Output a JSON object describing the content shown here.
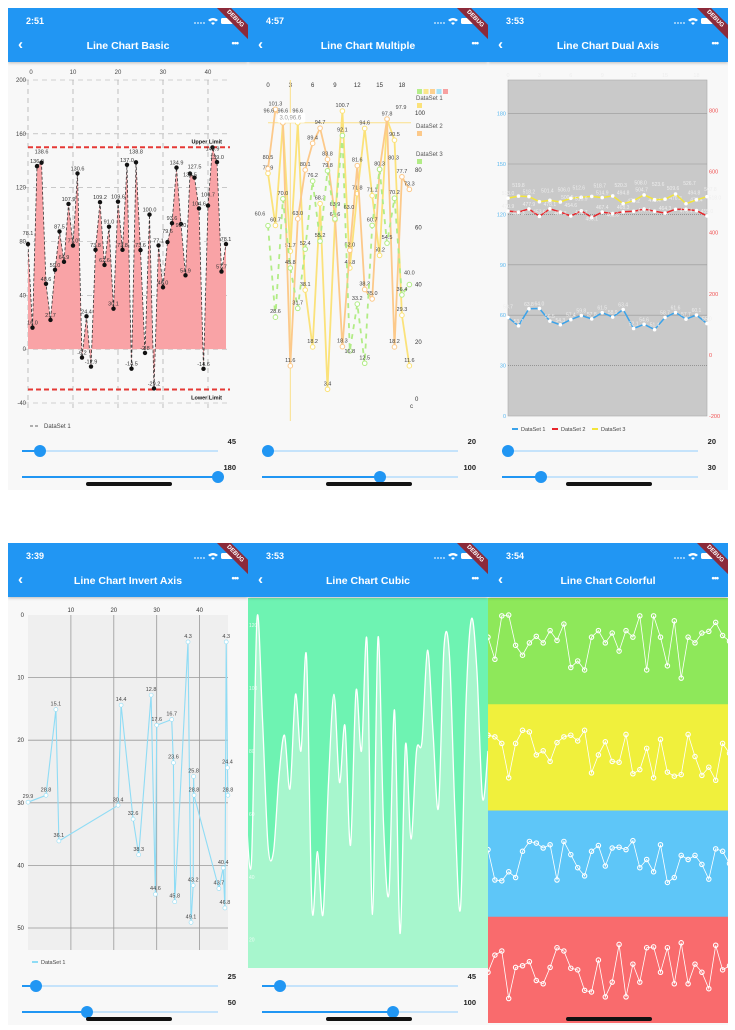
{
  "debug_banner": "DEBUG",
  "back_icon": "chevron-left-icon",
  "more_icon": "more-horizontal-icon",
  "more_label": "•••",
  "back_label": "<",
  "phones": [
    {
      "time": "2:51",
      "title": "Line Chart Basic",
      "sliders": [
        {
          "value": "45",
          "fraction": 0.09
        },
        {
          "value": "180",
          "fraction": 1.0
        }
      ]
    },
    {
      "time": "4:57",
      "title": "Line Chart Multiple",
      "sliders": [
        {
          "value": "20",
          "fraction": 0.03
        },
        {
          "value": "100",
          "fraction": 0.6
        }
      ]
    },
    {
      "time": "3:53",
      "title": "Line Chart Dual Axis",
      "sliders": [
        {
          "value": "20",
          "fraction": 0.03
        },
        {
          "value": "30",
          "fraction": 0.2
        }
      ]
    },
    {
      "time": "3:39",
      "title": "Line Chart Invert Axis",
      "sliders": [
        {
          "value": "25",
          "fraction": 0.07
        },
        {
          "value": "50",
          "fraction": 0.33
        }
      ]
    },
    {
      "time": "3:53",
      "title": "Line Chart Cubic",
      "sliders": [
        {
          "value": "45",
          "fraction": 0.09
        },
        {
          "value": "100",
          "fraction": 0.67
        }
      ]
    },
    {
      "time": "3:54",
      "title": "Line Chart Colorful",
      "sliders": []
    }
  ],
  "chart_data": [
    {
      "type": "area",
      "xticks": [
        "0",
        "10",
        "20",
        "30",
        "40"
      ],
      "yticks": [
        "-40",
        "0",
        "40",
        "80",
        "120",
        "160",
        "200"
      ],
      "xlim": [
        0,
        44
      ],
      "ylim": [
        -40,
        200
      ],
      "limits": [
        {
          "label": "Upper Limit",
          "value": 150
        },
        {
          "label": "Lower Limit",
          "value": -30
        }
      ],
      "legend": [
        "DataSet 1"
      ],
      "colors": {
        "fill": "#f9a3a6",
        "line": "#333333",
        "limit": "#e53935"
      },
      "values": [
        78.1,
        16.0,
        136.0,
        138.6,
        48.6,
        21.7,
        59.0,
        87.5,
        64.9,
        107.9,
        77.0,
        130.6,
        -6.2,
        24.4,
        -12.9,
        73.8,
        109.2,
        62.6,
        91.0,
        30.1,
        109.6,
        73.8,
        137.0,
        -14.5,
        138.8,
        73.6,
        -2.8,
        100.0,
        -29.2,
        77.1,
        46.0,
        79.6,
        93.6,
        134.9,
        93.0,
        54.9,
        130.5,
        127.5,
        104.6,
        -14.6,
        106.7,
        149.9,
        139.0,
        57.7,
        78.1
      ]
    },
    {
      "type": "line",
      "xticks": [
        "0",
        "3",
        "6",
        "9",
        "12",
        "15",
        "18"
      ],
      "yticks": [
        "0",
        "20",
        "40",
        "60",
        "80",
        "100"
      ],
      "extra_label": "c",
      "xlim": [
        0,
        19
      ],
      "ylim": [
        0,
        100
      ],
      "highlight": {
        "label": "3.0,96.6",
        "x": 3,
        "y": 96.6
      },
      "legend_swatches": [
        "#b5ee8a",
        "#fbe68a",
        "#fcd08f",
        "#a6e3f7",
        "#f7a0a0"
      ],
      "series": [
        {
          "name": "DataSet 1",
          "color": "#fbe27a",
          "dashed": false,
          "values": [
            78.9,
            60.7,
            96.6,
            51.7,
            96.6,
            38.1,
            18.2,
            68.3,
            3.4,
            62.6,
            100.7,
            45.8,
            71.8,
            94.6,
            71.1,
            50.2,
            97.8,
            90.5,
            29.3,
            11.6
          ]
        },
        {
          "name": "DataSet 2",
          "color": "#fcc98a",
          "dashed": false,
          "values": [
            80.5,
            101.3,
            96.6,
            11.6,
            63.0,
            80.1,
            89.4,
            94.7,
            83.8,
            63.9,
            18.3,
            52.0,
            81.6,
            38.3,
            35.0,
            80.3,
            97.9,
            18.2,
            77.7,
            73.3
          ]
        },
        {
          "name": "DataSet 3",
          "color": "#b2ec86",
          "dashed": true,
          "values": [
            60.6,
            28.6,
            70.0,
            45.8,
            31.7,
            52.4,
            76.2,
            55.2,
            79.8,
            63.0,
            92.1,
            16.8,
            33.2,
            12.5,
            60.7,
            80.3,
            54.5,
            70.2,
            36.4,
            40.0
          ]
        }
      ]
    },
    {
      "type": "line",
      "xticks": [
        "0",
        "3",
        "6",
        "9",
        "12",
        "15",
        "18"
      ],
      "yticks_left": [
        "0",
        "30",
        "60",
        "90",
        "120",
        "150",
        "180"
      ],
      "yticks_right": [
        "-200",
        "0",
        "200",
        "400",
        "600",
        "800"
      ],
      "ylim_left": [
        0,
        200
      ],
      "ylim_right": [
        -200,
        900
      ],
      "xlim": [
        0,
        19
      ],
      "background": "#c9c9c9",
      "series": [
        {
          "name": "DataSet 1",
          "axis": "left",
          "color": "#3ba3ea",
          "values": [
            58.7,
            53.7,
            63.8,
            64.0,
            56.5,
            54.3,
            57.4,
            59.8,
            57.8,
            61.5,
            58.9,
            63.4,
            52.1,
            54.6,
            51.4,
            58.7,
            61.6,
            57.7,
            60.1,
            55.0
          ]
        },
        {
          "name": "DataSet 2",
          "axis": "right",
          "color": "#e8262b",
          "values": [
            470.9,
            467.3,
            477.9,
            453.6,
            478.1,
            467.3,
            454.6,
            471.7,
            450.1,
            467.4,
            462.6,
            468.3,
            470.2,
            477.4,
            470.4,
            464.3,
            476.8,
            476.4,
            472.4,
            455.0
          ]
        },
        {
          "name": "DataSet 3",
          "axis": "right",
          "color": "#f3e53a",
          "values": [
            513.0,
            519.8,
            518.2,
            501.4,
            506.0,
            500.5,
            512.6,
            515.9,
            518.7,
            514.9,
            520.3,
            494.8,
            504.7,
            523.6,
            508.0,
            509.6,
            526.7,
            494.8,
            507.8,
            518.0
          ]
        }
      ]
    },
    {
      "type": "line",
      "inverted_y": true,
      "xticks": [
        "10",
        "20",
        "30",
        "40"
      ],
      "yticks": [
        "0",
        "10",
        "20",
        "30",
        "40",
        "50"
      ],
      "xlim": [
        0,
        46.8
      ],
      "ylim": [
        0,
        53.5
      ],
      "legend": [
        "DataSet 1"
      ],
      "color": "#8fdcf5",
      "points": [
        [
          0,
          29.9
        ],
        [
          4.2,
          28.8
        ],
        [
          6.5,
          15.1
        ],
        [
          7.2,
          36.1
        ],
        [
          21,
          30.4
        ],
        [
          21.7,
          14.4
        ],
        [
          24.5,
          32.6
        ],
        [
          25.8,
          38.3
        ],
        [
          28.7,
          12.8
        ],
        [
          29.7,
          44.6
        ],
        [
          30,
          17.6
        ],
        [
          33.5,
          16.7
        ],
        [
          33.9,
          23.6
        ],
        [
          34.2,
          45.8
        ],
        [
          37.3,
          4.3
        ],
        [
          38,
          49.1
        ],
        [
          38.5,
          43.2
        ],
        [
          38.6,
          25.8
        ],
        [
          38.7,
          28.8
        ],
        [
          44.5,
          43.7
        ],
        [
          45.5,
          40.4
        ],
        [
          45.9,
          46.8
        ],
        [
          46.2,
          4.3
        ],
        [
          46.5,
          24.4
        ],
        [
          46.6,
          28.8
        ]
      ]
    },
    {
      "type": "area",
      "smooth": true,
      "yticks": [
        "20",
        "40",
        "60",
        "80",
        "100",
        "120"
      ],
      "xlim": [
        0,
        44
      ],
      "ylim": [
        11,
        128.6
      ],
      "colors": {
        "background": "#6ef3b2",
        "fill": "#a7f6cd",
        "line": "#ffffff"
      },
      "values": [
        60,
        45,
        122,
        90,
        50,
        48,
        72,
        85,
        68,
        98,
        80,
        110,
        30,
        48,
        28,
        70,
        98,
        70,
        88,
        50,
        99,
        80,
        115,
        28,
        116,
        57,
        35,
        93,
        22,
        82,
        52,
        80,
        83,
        112,
        86,
        62,
        113,
        110,
        60,
        30,
        95,
        122,
        105,
        65,
        80
      ]
    },
    {
      "type": "line",
      "panels": [
        {
          "color": "#8ee85a",
          "values": [
            62,
            35,
            88,
            89,
            52,
            40,
            55,
            63,
            55,
            70,
            58,
            78,
            25,
            33,
            22,
            62,
            70,
            55,
            67,
            45,
            70,
            62,
            88,
            22,
            88,
            62,
            27,
            82,
            12,
            62,
            55,
            67,
            69,
            80,
            64,
            57
          ]
        },
        {
          "color": "#f0f03c",
          "values": [
            72,
            70,
            62,
            20,
            62,
            78,
            76,
            48,
            53,
            40,
            63,
            70,
            72,
            65,
            78,
            26,
            48,
            64,
            40,
            39,
            73,
            25,
            30,
            56,
            20,
            67,
            27,
            22,
            24,
            73,
            46,
            23,
            33,
            17,
            62,
            50
          ]
        },
        {
          "color": "#5ec6f8",
          "values": [
            62,
            25,
            24,
            35,
            28,
            60,
            72,
            70,
            64,
            68,
            25,
            72,
            56,
            40,
            30,
            60,
            67,
            42,
            64,
            65,
            62,
            73,
            40,
            50,
            35,
            68,
            22,
            28,
            55,
            50,
            55,
            44,
            26,
            63,
            60,
            45
          ]
        },
        {
          "color": "#f96b6d",
          "values": [
            42,
            63,
            68,
            10,
            48,
            50,
            55,
            32,
            28,
            48,
            72,
            68,
            47,
            45,
            20,
            18,
            57,
            12,
            30,
            76,
            12,
            52,
            30,
            72,
            73,
            42,
            72,
            28,
            78,
            28,
            52,
            42,
            22,
            75,
            45,
            50
          ]
        }
      ]
    }
  ]
}
